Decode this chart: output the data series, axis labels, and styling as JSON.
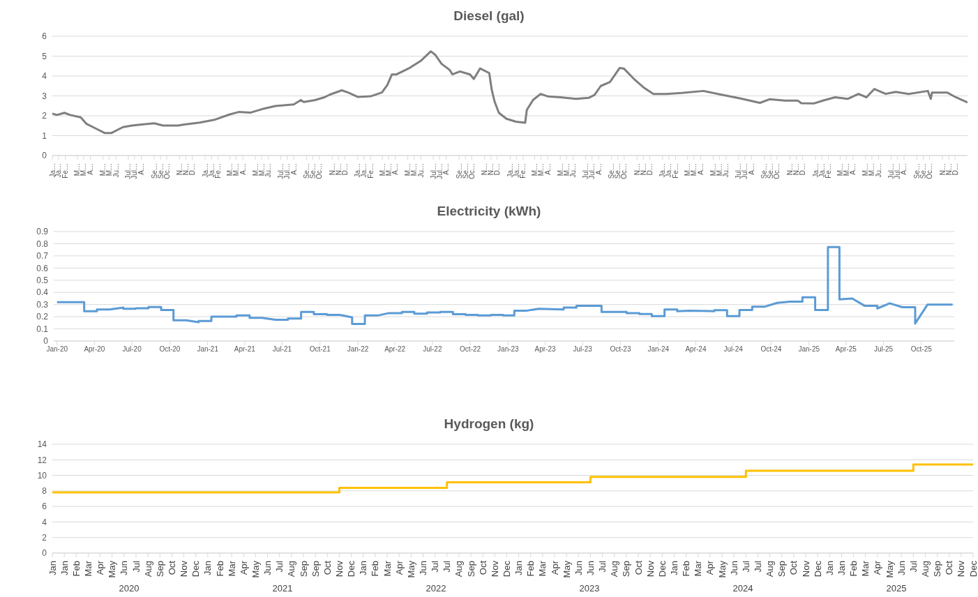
{
  "chart_data": [
    {
      "type": "line",
      "title": "Diesel (gal)",
      "color": "#7f7f7f",
      "grid": "y",
      "ylim": [
        0,
        6
      ],
      "yticks": [
        0,
        1,
        2,
        3,
        4,
        5,
        6
      ],
      "xlim": [
        "2020-01-01",
        "2025-12-31"
      ],
      "xticks": [
        {
          "value": "2020-01-01",
          "label": "Ja…"
        },
        {
          "value": "2020-01-16",
          "label": "Ja…"
        },
        {
          "value": "2020-02-01",
          "label": "Fe…"
        },
        {
          "value": "2020-03-01",
          "label": "M…"
        },
        {
          "value": "2020-03-16",
          "label": "M…"
        },
        {
          "value": "2020-04-01",
          "label": "A…"
        },
        {
          "value": "2020-05-01",
          "label": "M…"
        },
        {
          "value": "2020-05-16",
          "label": "M…"
        },
        {
          "value": "2020-06-01",
          "label": "Ju…"
        },
        {
          "value": "2020-07-01",
          "label": "Jul…"
        },
        {
          "value": "2020-07-16",
          "label": "Jul…"
        },
        {
          "value": "2020-08-01",
          "label": "A…"
        },
        {
          "value": "2020-09-01",
          "label": "Se…"
        },
        {
          "value": "2020-09-16",
          "label": "Se…"
        },
        {
          "value": "2020-10-01",
          "label": "Oc…"
        },
        {
          "value": "2020-11-01",
          "label": "N…"
        },
        {
          "value": "2020-11-16",
          "label": "N…"
        },
        {
          "value": "2020-12-01",
          "label": "D…"
        },
        {
          "value": "2021-01-01",
          "label": "Ja…"
        },
        {
          "value": "2021-01-16",
          "label": "Ja…"
        },
        {
          "value": "2021-02-01",
          "label": "Fe…"
        },
        {
          "value": "2021-03-01",
          "label": "M…"
        },
        {
          "value": "2021-03-16",
          "label": "M…"
        },
        {
          "value": "2021-04-01",
          "label": "A…"
        },
        {
          "value": "2021-05-01",
          "label": "M…"
        },
        {
          "value": "2021-05-16",
          "label": "M…"
        },
        {
          "value": "2021-06-01",
          "label": "Ju…"
        },
        {
          "value": "2021-07-01",
          "label": "Jul…"
        },
        {
          "value": "2021-07-16",
          "label": "Jul…"
        },
        {
          "value": "2021-08-01",
          "label": "A…"
        },
        {
          "value": "2021-09-01",
          "label": "Se…"
        },
        {
          "value": "2021-09-16",
          "label": "Se…"
        },
        {
          "value": "2021-10-01",
          "label": "Oc…"
        },
        {
          "value": "2021-11-01",
          "label": "N…"
        },
        {
          "value": "2021-11-16",
          "label": "N…"
        },
        {
          "value": "2021-12-01",
          "label": "D…"
        },
        {
          "value": "2022-01-01",
          "label": "Ja…"
        },
        {
          "value": "2022-01-16",
          "label": "Ja…"
        },
        {
          "value": "2022-02-01",
          "label": "Fe…"
        },
        {
          "value": "2022-03-01",
          "label": "M…"
        },
        {
          "value": "2022-03-16",
          "label": "M…"
        },
        {
          "value": "2022-04-01",
          "label": "A…"
        },
        {
          "value": "2022-05-01",
          "label": "M…"
        },
        {
          "value": "2022-05-16",
          "label": "M…"
        },
        {
          "value": "2022-06-01",
          "label": "Ju…"
        },
        {
          "value": "2022-07-01",
          "label": "Jul…"
        },
        {
          "value": "2022-07-16",
          "label": "Jul…"
        },
        {
          "value": "2022-08-01",
          "label": "A…"
        },
        {
          "value": "2022-09-01",
          "label": "Se…"
        },
        {
          "value": "2022-09-16",
          "label": "Se…"
        },
        {
          "value": "2022-10-01",
          "label": "Oc…"
        },
        {
          "value": "2022-11-01",
          "label": "N…"
        },
        {
          "value": "2022-11-16",
          "label": "N…"
        },
        {
          "value": "2022-12-01",
          "label": "D…"
        },
        {
          "value": "2023-01-01",
          "label": "Ja…"
        },
        {
          "value": "2023-01-16",
          "label": "Ja…"
        },
        {
          "value": "2023-02-01",
          "label": "Fe…"
        },
        {
          "value": "2023-03-01",
          "label": "M…"
        },
        {
          "value": "2023-03-16",
          "label": "M…"
        },
        {
          "value": "2023-04-01",
          "label": "A…"
        },
        {
          "value": "2023-05-01",
          "label": "M…"
        },
        {
          "value": "2023-05-16",
          "label": "M…"
        },
        {
          "value": "2023-06-01",
          "label": "Ju…"
        },
        {
          "value": "2023-07-01",
          "label": "Jul…"
        },
        {
          "value": "2023-07-16",
          "label": "Jul…"
        },
        {
          "value": "2023-08-01",
          "label": "A…"
        },
        {
          "value": "2023-09-01",
          "label": "Se…"
        },
        {
          "value": "2023-09-16",
          "label": "Se…"
        },
        {
          "value": "2023-10-01",
          "label": "Oc…"
        },
        {
          "value": "2023-11-01",
          "label": "N…"
        },
        {
          "value": "2023-11-16",
          "label": "N…"
        },
        {
          "value": "2023-12-01",
          "label": "D…"
        },
        {
          "value": "2024-01-01",
          "label": "Ja…"
        },
        {
          "value": "2024-01-16",
          "label": "Ja…"
        },
        {
          "value": "2024-02-01",
          "label": "Fe…"
        },
        {
          "value": "2024-03-01",
          "label": "M…"
        },
        {
          "value": "2024-03-16",
          "label": "M…"
        },
        {
          "value": "2024-04-01",
          "label": "A…"
        },
        {
          "value": "2024-05-01",
          "label": "M…"
        },
        {
          "value": "2024-05-16",
          "label": "M…"
        },
        {
          "value": "2024-06-01",
          "label": "Ju…"
        },
        {
          "value": "2024-07-01",
          "label": "Jul…"
        },
        {
          "value": "2024-07-16",
          "label": "Jul…"
        },
        {
          "value": "2024-08-01",
          "label": "A…"
        },
        {
          "value": "2024-09-01",
          "label": "Se…"
        },
        {
          "value": "2024-09-16",
          "label": "Se…"
        },
        {
          "value": "2024-10-01",
          "label": "Oc…"
        },
        {
          "value": "2024-11-01",
          "label": "N…"
        },
        {
          "value": "2024-11-16",
          "label": "N…"
        },
        {
          "value": "2024-12-01",
          "label": "D…"
        },
        {
          "value": "2025-01-01",
          "label": "Ja…"
        },
        {
          "value": "2025-01-16",
          "label": "Ja…"
        },
        {
          "value": "2025-02-01",
          "label": "Fe…"
        },
        {
          "value": "2025-03-01",
          "label": "M…"
        },
        {
          "value": "2025-03-16",
          "label": "M…"
        },
        {
          "value": "2025-04-01",
          "label": "A…"
        },
        {
          "value": "2025-05-01",
          "label": "M…"
        },
        {
          "value": "2025-05-16",
          "label": "M…"
        },
        {
          "value": "2025-06-01",
          "label": "Ju…"
        },
        {
          "value": "2025-07-01",
          "label": "Jul…"
        },
        {
          "value": "2025-07-16",
          "label": "Jul…"
        },
        {
          "value": "2025-08-01",
          "label": "A…"
        },
        {
          "value": "2025-09-01",
          "label": "Se…"
        },
        {
          "value": "2025-09-16",
          "label": "Se…"
        },
        {
          "value": "2025-10-01",
          "label": "Oc…"
        },
        {
          "value": "2025-11-01",
          "label": "N…"
        },
        {
          "value": "2025-11-16",
          "label": "N…"
        },
        {
          "value": "2025-12-01",
          "label": "D…"
        }
      ],
      "x": [
        "2020-01-01",
        "2020-01-12",
        "2020-01-30",
        "2020-02-13",
        "2020-03-09",
        "2020-03-23",
        "2020-04-14",
        "2020-05-06",
        "2020-05-21",
        "2020-06-18",
        "2020-07-10",
        "2020-08-02",
        "2020-09-01",
        "2020-09-22",
        "2020-10-28",
        "2020-11-12",
        "2020-12-19",
        "2021-01-25",
        "2021-03-01",
        "2021-03-22",
        "2021-04-20",
        "2021-05-18",
        "2021-06-18",
        "2021-08-01",
        "2021-08-18",
        "2021-08-25",
        "2021-09-21",
        "2021-10-12",
        "2021-10-27",
        "2021-11-24",
        "2021-12-09",
        "2022-01-01",
        "2022-02-01",
        "2022-02-28",
        "2022-03-13",
        "2022-03-24",
        "2022-04-04",
        "2022-05-03",
        "2022-06-01",
        "2022-06-25",
        "2022-07-06",
        "2022-07-21",
        "2022-08-09",
        "2022-08-16",
        "2022-09-03",
        "2022-09-27",
        "2022-10-06",
        "2022-10-21",
        "2022-11-12",
        "2022-11-18",
        "2022-11-25",
        "2022-12-05",
        "2022-12-23",
        "2023-01-15",
        "2023-02-06",
        "2023-02-10",
        "2023-02-25",
        "2023-03-15",
        "2023-04-02",
        "2023-05-01",
        "2023-06-08",
        "2023-07-08",
        "2023-07-22",
        "2023-08-06",
        "2023-08-28",
        "2023-09-20",
        "2023-09-30",
        "2023-10-27",
        "2023-11-18",
        "2023-12-10",
        "2024-01-10",
        "2024-02-16",
        "2024-04-08",
        "2024-05-23",
        "2024-07-06",
        "2024-08-21",
        "2024-09-13",
        "2024-10-20",
        "2024-11-20",
        "2024-11-28",
        "2024-12-28",
        "2025-01-20",
        "2025-02-17",
        "2025-03-19",
        "2025-04-14",
        "2025-05-03",
        "2025-05-22",
        "2025-06-18",
        "2025-07-12",
        "2025-08-12",
        "2025-09-27",
        "2025-10-04",
        "2025-10-07",
        "2025-11-12",
        "2025-12-03",
        "2025-12-31"
      ],
      "values": [
        2.11,
        2.04,
        2.15,
        2.04,
        1.92,
        1.59,
        1.36,
        1.13,
        1.13,
        1.43,
        1.51,
        1.56,
        1.62,
        1.51,
        1.51,
        1.56,
        1.66,
        1.81,
        2.07,
        2.19,
        2.16,
        2.34,
        2.49,
        2.57,
        2.79,
        2.69,
        2.79,
        2.92,
        3.07,
        3.28,
        3.17,
        2.95,
        2.98,
        3.17,
        3.55,
        4.08,
        4.08,
        4.38,
        4.76,
        5.24,
        5.06,
        4.61,
        4.31,
        4.08,
        4.23,
        4.08,
        3.85,
        4.38,
        4.15,
        3.3,
        2.7,
        2.15,
        1.85,
        1.7,
        1.65,
        2.3,
        2.8,
        3.1,
        2.97,
        2.93,
        2.85,
        2.9,
        3.05,
        3.5,
        3.7,
        4.4,
        4.38,
        3.8,
        3.4,
        3.1,
        3.1,
        3.15,
        3.25,
        3.05,
        2.87,
        2.65,
        2.83,
        2.76,
        2.76,
        2.63,
        2.62,
        2.77,
        2.93,
        2.85,
        3.1,
        2.93,
        3.35,
        3.1,
        3.2,
        3.1,
        3.25,
        2.85,
        3.17,
        3.17,
        2.93,
        2.67
      ]
    },
    {
      "type": "line",
      "title": "Electricity (kWh)",
      "color": "#5b9bd5",
      "grid": "y",
      "ylim": [
        0,
        0.9
      ],
      "yticks": [
        0,
        0.1,
        0.2,
        0.3,
        0.4,
        0.5,
        0.6,
        0.7,
        0.8,
        0.9
      ],
      "xlim": [
        "2019-12-24",
        "2025-12-20"
      ],
      "xticks": [
        {
          "value": "2020-01-01",
          "label": "Jan-20"
        },
        {
          "value": "2020-04-01",
          "label": "Apr-20"
        },
        {
          "value": "2020-07-01",
          "label": "Jul-20"
        },
        {
          "value": "2020-10-01",
          "label": "Oct-20"
        },
        {
          "value": "2021-01-01",
          "label": "Jan-21"
        },
        {
          "value": "2021-04-01",
          "label": "Apr-21"
        },
        {
          "value": "2021-07-01",
          "label": "Jul-21"
        },
        {
          "value": "2021-10-01",
          "label": "Oct-21"
        },
        {
          "value": "2022-01-01",
          "label": "Jan-22"
        },
        {
          "value": "2022-04-01",
          "label": "Apr-22"
        },
        {
          "value": "2022-07-01",
          "label": "Jul-22"
        },
        {
          "value": "2022-10-01",
          "label": "Oct-22"
        },
        {
          "value": "2023-01-01",
          "label": "Jan-23"
        },
        {
          "value": "2023-04-01",
          "label": "Apr-23"
        },
        {
          "value": "2023-07-01",
          "label": "Jul-23"
        },
        {
          "value": "2023-10-01",
          "label": "Oct-23"
        },
        {
          "value": "2024-01-01",
          "label": "Jan-24"
        },
        {
          "value": "2024-04-01",
          "label": "Apr-24"
        },
        {
          "value": "2024-07-01",
          "label": "Jul-24"
        },
        {
          "value": "2024-10-01",
          "label": "Oct-24"
        },
        {
          "value": "2025-01-01",
          "label": "Jan-25"
        },
        {
          "value": "2025-04-01",
          "label": "Apr-25"
        },
        {
          "value": "2025-07-01",
          "label": "Jul-25"
        },
        {
          "value": "2025-10-01",
          "label": "Oct-25"
        }
      ],
      "x": [
        "2020-01-01",
        "2020-03-07",
        "2020-03-07",
        "2020-04-07",
        "2020-04-07",
        "2020-05-08",
        "2020-06-10",
        "2020-06-10",
        "2020-07-10",
        "2020-07-10",
        "2020-08-10",
        "2020-08-10",
        "2020-09-10",
        "2020-09-10",
        "2020-10-10",
        "2020-10-10",
        "2020-11-10",
        "2020-12-10",
        "2020-12-10",
        "2021-01-10",
        "2021-01-10",
        "2021-03-12",
        "2021-03-12",
        "2021-04-13",
        "2021-04-13",
        "2021-05-13",
        "2021-06-15",
        "2021-07-15",
        "2021-07-15",
        "2021-08-16",
        "2021-08-16",
        "2021-09-16",
        "2021-09-16",
        "2021-10-18",
        "2021-10-18",
        "2021-11-18",
        "2021-12-18",
        "2021-12-18",
        "2022-01-18",
        "2022-01-18",
        "2022-02-18",
        "2022-03-18",
        "2022-04-18",
        "2022-04-18",
        "2022-05-18",
        "2022-05-18",
        "2022-06-18",
        "2022-06-18",
        "2022-07-20",
        "2022-07-20",
        "2022-08-20",
        "2022-08-20",
        "2022-09-20",
        "2022-09-20",
        "2022-10-20",
        "2022-10-20",
        "2022-11-20",
        "2022-11-20",
        "2022-12-20",
        "2022-12-20",
        "2023-01-16",
        "2023-01-16",
        "2023-02-16",
        "2023-03-16",
        "2023-05-16",
        "2023-05-16",
        "2023-06-16",
        "2023-06-16",
        "2023-08-16",
        "2023-08-16",
        "2023-10-16",
        "2023-10-16",
        "2023-11-16",
        "2023-11-16",
        "2023-12-16",
        "2023-12-16",
        "2024-01-16",
        "2024-01-16",
        "2024-02-16",
        "2024-02-16",
        "2024-03-16",
        "2024-05-16",
        "2024-05-16",
        "2024-06-16",
        "2024-06-16",
        "2024-07-16",
        "2024-07-16",
        "2024-08-16",
        "2024-08-16",
        "2024-09-16",
        "2024-10-16",
        "2024-11-16",
        "2024-12-16",
        "2024-12-16",
        "2025-01-16",
        "2025-01-16",
        "2025-02-16",
        "2025-02-16",
        "2025-03-16",
        "2025-03-16",
        "2025-04-16",
        "2025-05-16",
        "2025-06-16",
        "2025-06-16",
        "2025-07-16",
        "2025-08-16",
        "2025-09-16",
        "2025-09-16",
        "2025-10-16",
        "2025-12-16"
      ],
      "values": [
        0.32,
        0.32,
        0.245,
        0.245,
        0.26,
        0.26,
        0.275,
        0.265,
        0.265,
        0.27,
        0.27,
        0.28,
        0.28,
        0.255,
        0.255,
        0.17,
        0.17,
        0.155,
        0.165,
        0.165,
        0.2,
        0.2,
        0.21,
        0.21,
        0.19,
        0.19,
        0.175,
        0.175,
        0.185,
        0.185,
        0.24,
        0.24,
        0.22,
        0.22,
        0.215,
        0.215,
        0.195,
        0.14,
        0.14,
        0.21,
        0.21,
        0.23,
        0.23,
        0.24,
        0.24,
        0.225,
        0.225,
        0.235,
        0.235,
        0.24,
        0.24,
        0.22,
        0.22,
        0.215,
        0.215,
        0.21,
        0.21,
        0.215,
        0.215,
        0.21,
        0.21,
        0.25,
        0.25,
        0.265,
        0.26,
        0.275,
        0.275,
        0.29,
        0.29,
        0.24,
        0.24,
        0.23,
        0.23,
        0.222,
        0.222,
        0.205,
        0.205,
        0.26,
        0.26,
        0.245,
        0.25,
        0.245,
        0.253,
        0.253,
        0.205,
        0.205,
        0.255,
        0.255,
        0.283,
        0.283,
        0.314,
        0.324,
        0.324,
        0.36,
        0.36,
        0.255,
        0.255,
        0.772,
        0.772,
        0.342,
        0.35,
        0.29,
        0.29,
        0.268,
        0.31,
        0.278,
        0.278,
        0.144,
        0.3,
        0.3
      ]
    },
    {
      "type": "step",
      "title": "Hydrogen (kg)",
      "color": "#ffc000",
      "grid": "y",
      "ylim": [
        0,
        14
      ],
      "yticks": [
        0,
        2,
        4,
        6,
        8,
        10,
        12,
        14
      ],
      "annotations": [
        "2020",
        "2021",
        "2022",
        "2023",
        "2024",
        "2025"
      ],
      "categories": [
        "Jan",
        "Jan",
        "Feb",
        "Mar",
        "Apr",
        "May",
        "Jun",
        "Jul",
        "Aug",
        "Sep",
        "Oct",
        "Nov",
        "Dec",
        "Jan",
        "Feb",
        "Mar",
        "Apr",
        "May",
        "Jun",
        "Jul",
        "Aug",
        "Sep",
        "Sep",
        "Oct",
        "Nov",
        "Dec",
        "Jan",
        "Feb",
        "Mar",
        "Apr",
        "May",
        "Jun",
        "Jul",
        "Jul",
        "Aug",
        "Sep",
        "Oct",
        "Nov",
        "Dec",
        "Jan",
        "Feb",
        "Mar",
        "Apr",
        "May",
        "Jun",
        "Jun",
        "Jul",
        "Aug",
        "Sep",
        "Oct",
        "Nov",
        "Dec",
        "Jan",
        "Feb",
        "Mar",
        "Apr",
        "May",
        "Jun",
        "Jul",
        "Jul",
        "Aug",
        "Sep",
        "Oct",
        "Nov",
        "Dec",
        "Jan",
        "Jan",
        "Feb",
        "Mar",
        "Apr",
        "May",
        "Jun",
        "Jul",
        "Aug",
        "Sep",
        "Oct",
        "Nov",
        "Dec"
      ],
      "values": [
        7.8,
        7.8,
        7.8,
        7.8,
        7.8,
        7.8,
        7.8,
        7.8,
        7.8,
        7.8,
        7.8,
        7.8,
        7.8,
        7.8,
        7.8,
        7.8,
        7.8,
        7.8,
        7.8,
        7.8,
        7.8,
        7.8,
        7.8,
        7.8,
        7.8,
        8.4,
        8.4,
        8.4,
        8.4,
        8.4,
        8.4,
        8.4,
        8.4,
        8.4,
        9.1,
        9.1,
        9.1,
        9.1,
        9.1,
        9.1,
        9.1,
        9.1,
        9.1,
        9.1,
        9.1,
        9.1,
        9.8,
        9.8,
        9.8,
        9.8,
        9.8,
        9.8,
        9.8,
        9.8,
        9.8,
        9.8,
        9.8,
        9.8,
        9.8,
        10.6,
        10.6,
        10.6,
        10.6,
        10.6,
        10.6,
        10.6,
        10.6,
        10.6,
        10.6,
        10.6,
        10.6,
        10.6,
        10.6,
        11.4,
        11.4,
        11.4,
        11.4,
        11.4
      ]
    }
  ]
}
